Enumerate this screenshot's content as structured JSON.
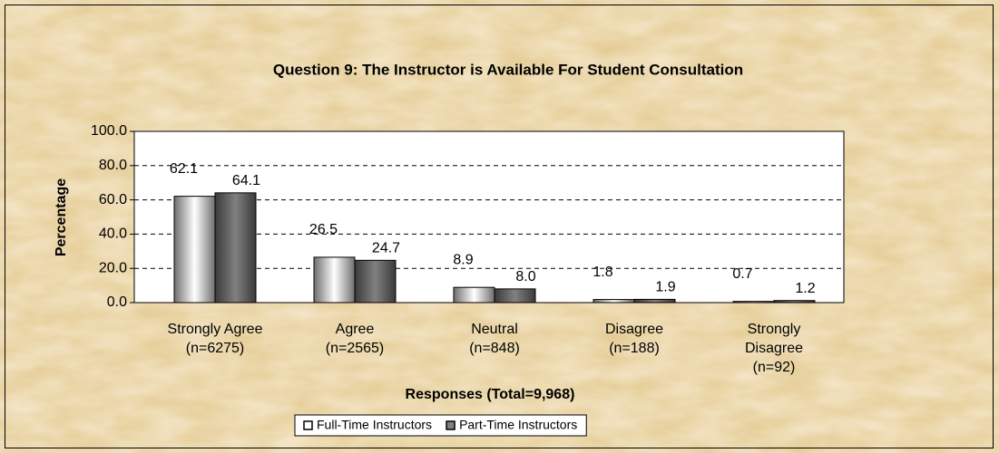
{
  "chart_data": {
    "type": "bar",
    "title": "Question 9:  The Instructor is Available For Student Consultation",
    "xlabel": "Responses (Total=9,968)",
    "ylabel": "Percentage",
    "categories": [
      [
        "Strongly Agree",
        "(n=6275)"
      ],
      [
        "Agree",
        "(n=2565)"
      ],
      [
        "Neutral",
        "(n=848)"
      ],
      [
        "Disagree",
        "(n=188)"
      ],
      [
        "Strongly",
        "Disagree",
        "(n=92)"
      ]
    ],
    "series": [
      {
        "name": "Full-Time Instructors",
        "color": "#ffffff",
        "values": [
          62.1,
          26.5,
          8.9,
          1.8,
          0.7
        ],
        "value_labels": [
          "62.1",
          "26.5",
          "8.9",
          "1.8",
          "0.7"
        ]
      },
      {
        "name": "Part-Time Instructors",
        "color": "#808080",
        "values": [
          64.1,
          24.7,
          8.0,
          1.9,
          1.2
        ],
        "value_labels": [
          "64.1",
          "24.7",
          "8.0",
          "1.9",
          "1.2"
        ]
      }
    ],
    "ylim": [
      0,
      100
    ],
    "yticks": [
      {
        "value": 0,
        "label": "0.0"
      },
      {
        "value": 20,
        "label": "20.0"
      },
      {
        "value": 40,
        "label": "40.0"
      },
      {
        "value": 60,
        "label": "60.0"
      },
      {
        "value": 80,
        "label": "80.0"
      },
      {
        "value": 100,
        "label": "100.0"
      }
    ],
    "grid": true,
    "legend": "bottom"
  }
}
